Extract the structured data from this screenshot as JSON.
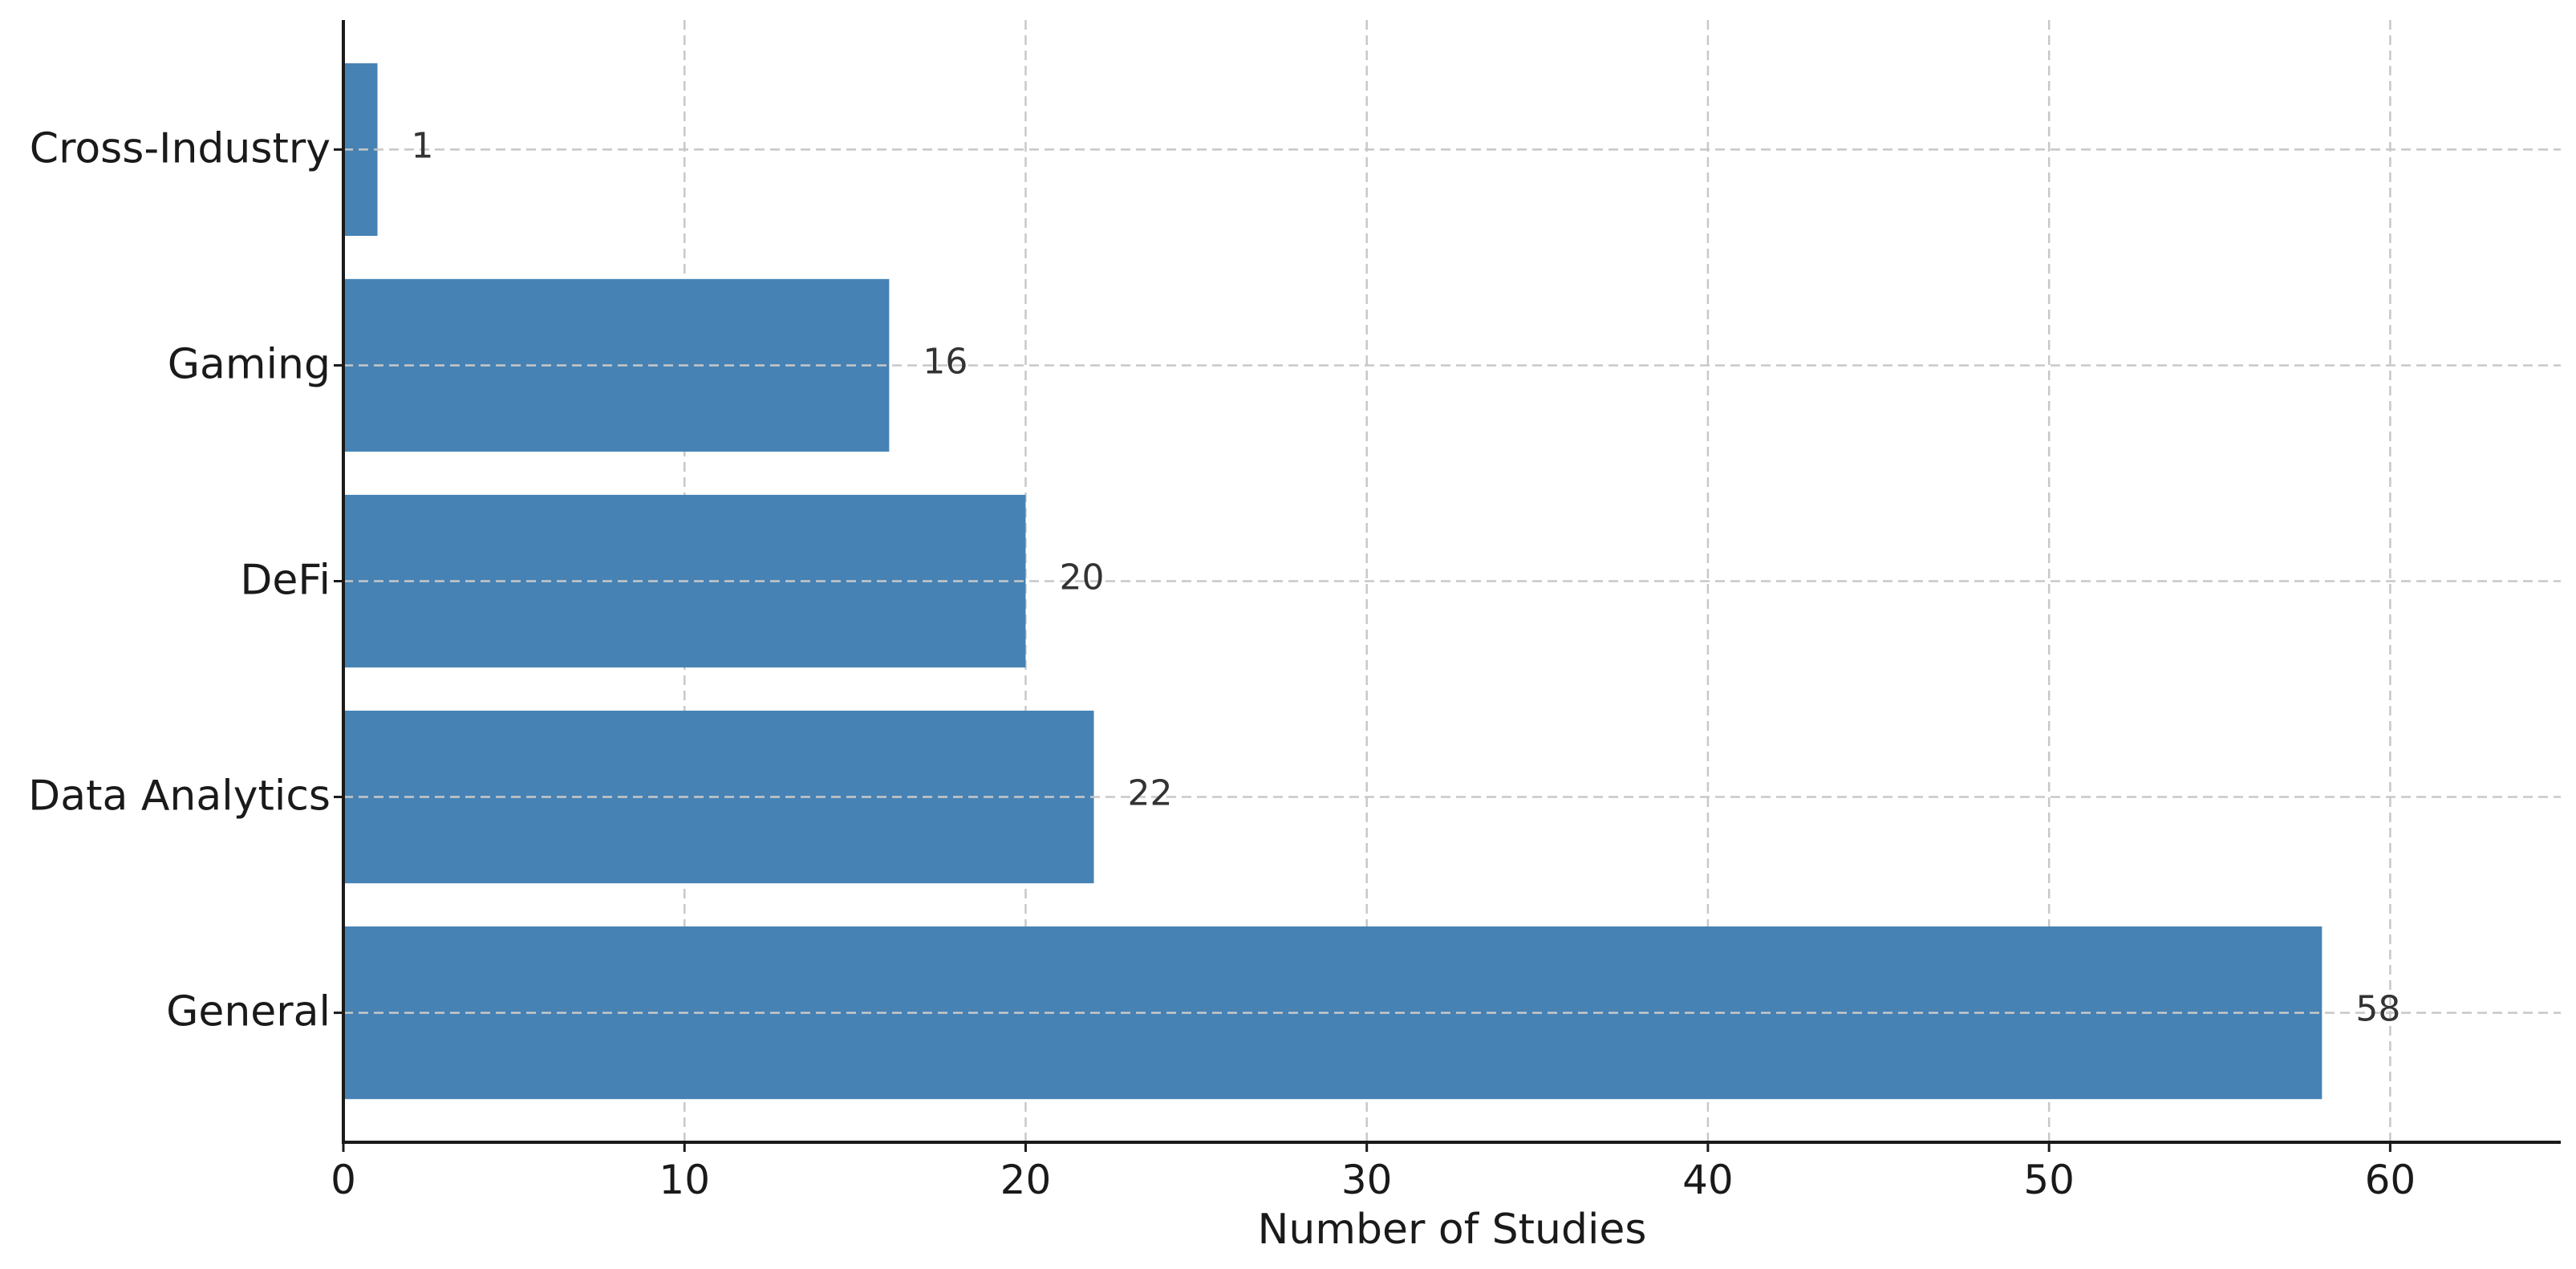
{
  "chart_data": {
    "type": "bar",
    "orientation": "horizontal",
    "categories": [
      "General",
      "Data Analytics",
      "DeFi",
      "Gaming",
      "Cross-Industry"
    ],
    "values": [
      58,
      22,
      20,
      16,
      1
    ],
    "title": "",
    "xlabel": "Number of Studies",
    "ylabel": "",
    "xlim": [
      0,
      65
    ],
    "xticks": [
      0,
      10,
      20,
      30,
      40,
      50,
      60
    ],
    "grid": true,
    "bar_color": "#4682b4",
    "value_labels": true
  }
}
